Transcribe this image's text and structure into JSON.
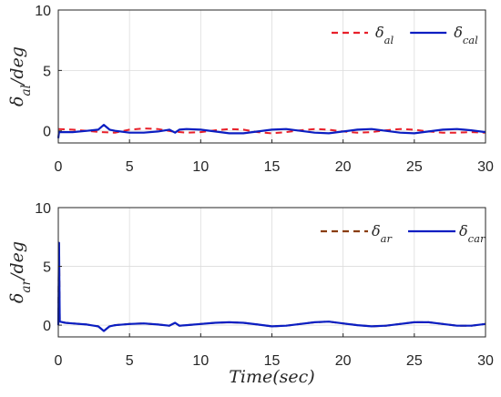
{
  "chart_data": [
    {
      "type": "line",
      "ylabel": "δal/deg",
      "xlabel": "",
      "xlim": [
        0,
        30
      ],
      "ylim": [
        -1,
        10
      ],
      "xticks": [
        "0",
        "5",
        "10",
        "15",
        "20",
        "25",
        "30"
      ],
      "yticks": [
        "0",
        "5",
        "10"
      ],
      "grid": true,
      "legend_position": "top-right",
      "series": [
        {
          "name": "δal",
          "color": "#e8202a",
          "dash": "dashed",
          "x": [
            0,
            1,
            2,
            3,
            4,
            5,
            6,
            7,
            8,
            9,
            10,
            11,
            12,
            13,
            14,
            15,
            16,
            17,
            18,
            19,
            20,
            21,
            22,
            23,
            24,
            25,
            26,
            27,
            28,
            29,
            30
          ],
          "y": [
            0.15,
            0.1,
            0.0,
            -0.1,
            -0.15,
            0.1,
            0.2,
            0.15,
            -0.05,
            -0.15,
            -0.1,
            0.05,
            0.15,
            0.1,
            -0.1,
            -0.2,
            -0.1,
            0.05,
            0.15,
            0.1,
            -0.05,
            -0.15,
            -0.1,
            0.05,
            0.15,
            0.1,
            -0.05,
            -0.15,
            -0.15,
            -0.1,
            -0.15
          ]
        },
        {
          "name": "δcal",
          "color": "#0b1ec2",
          "dash": "solid",
          "x": [
            0,
            0.05,
            0.5,
            1,
            2,
            2.8,
            3.2,
            3.6,
            4,
            5,
            6,
            7,
            7.8,
            8.2,
            8.5,
            9,
            10,
            11,
            12,
            13,
            14,
            15,
            16,
            17,
            18,
            19,
            20,
            21,
            22,
            23,
            24,
            25,
            26,
            27,
            28,
            29,
            30
          ],
          "y": [
            -0.6,
            -0.1,
            -0.1,
            -0.1,
            0.0,
            0.1,
            0.5,
            0.1,
            0.0,
            -0.15,
            -0.15,
            -0.05,
            0.1,
            -0.15,
            0.1,
            0.15,
            0.1,
            -0.05,
            -0.2,
            -0.2,
            -0.05,
            0.1,
            0.15,
            0.0,
            -0.15,
            -0.2,
            -0.05,
            0.1,
            0.15,
            0.0,
            -0.15,
            -0.2,
            -0.05,
            0.1,
            0.15,
            0.05,
            -0.1
          ]
        }
      ]
    },
    {
      "type": "line",
      "ylabel": "δar/deg",
      "xlabel": "Time(sec)",
      "xlim": [
        0,
        30
      ],
      "ylim": [
        -1,
        10
      ],
      "xticks": [
        "0",
        "5",
        "10",
        "15",
        "20",
        "25",
        "30"
      ],
      "yticks": [
        "0",
        "5",
        "10"
      ],
      "grid": true,
      "legend_position": "top-right",
      "series": [
        {
          "name": "δar",
          "color": "#8a3d0c",
          "dash": "dashed",
          "x": [
            0,
            0.05,
            0.1,
            0.5,
            1,
            2,
            2.8,
            3.2,
            3.6,
            4,
            5,
            6,
            7,
            7.8,
            8.2,
            8.5,
            9,
            10,
            11,
            12,
            13,
            14,
            15,
            16,
            17,
            18,
            19,
            20,
            21,
            22,
            23,
            24,
            25,
            26,
            27,
            28,
            29,
            30
          ],
          "y": [
            0.0,
            7.0,
            0.3,
            0.2,
            0.15,
            0.05,
            -0.1,
            -0.5,
            -0.1,
            0.0,
            0.1,
            0.15,
            0.05,
            -0.05,
            0.2,
            -0.05,
            0.0,
            0.1,
            0.2,
            0.25,
            0.2,
            0.05,
            -0.1,
            -0.05,
            0.1,
            0.25,
            0.3,
            0.15,
            0.0,
            -0.1,
            -0.05,
            0.1,
            0.25,
            0.25,
            0.1,
            -0.05,
            -0.05,
            0.1
          ]
        },
        {
          "name": "δcar",
          "color": "#0b1ec2",
          "dash": "solid",
          "x": [
            0,
            0.05,
            0.1,
            0.5,
            1,
            2,
            2.8,
            3.2,
            3.6,
            4,
            5,
            6,
            7,
            7.8,
            8.2,
            8.5,
            9,
            10,
            11,
            12,
            13,
            14,
            15,
            16,
            17,
            18,
            19,
            20,
            21,
            22,
            23,
            24,
            25,
            26,
            27,
            28,
            29,
            30
          ],
          "y": [
            0.0,
            7.0,
            0.3,
            0.2,
            0.15,
            0.05,
            -0.1,
            -0.5,
            -0.1,
            0.0,
            0.1,
            0.15,
            0.05,
            -0.05,
            0.2,
            -0.05,
            0.0,
            0.1,
            0.2,
            0.25,
            0.2,
            0.05,
            -0.1,
            -0.05,
            0.1,
            0.25,
            0.3,
            0.15,
            0.0,
            -0.1,
            -0.05,
            0.1,
            0.25,
            0.25,
            0.1,
            -0.05,
            -0.05,
            0.1
          ]
        }
      ]
    }
  ]
}
